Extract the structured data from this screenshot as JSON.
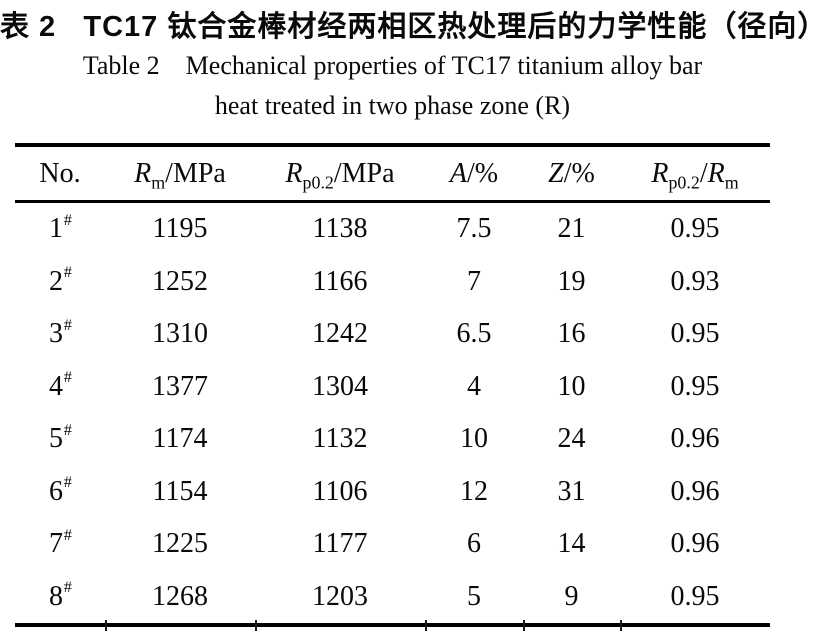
{
  "page": {
    "title_zh": "表 2   TC17 钛合金棒材经两相区热处理后的力学性能（径向）",
    "title_en_line1": "Table 2    Mechanical properties of TC17 titanium alloy bar",
    "title_en_line2": "heat treated in two phase zone (R)"
  },
  "table": {
    "row_marker": "#",
    "columns": [
      {
        "key": "no",
        "label_segments": [
          {
            "t": "No."
          }
        ]
      },
      {
        "key": "rm",
        "label_segments": [
          {
            "t": "R",
            "s": "i"
          },
          {
            "t": "m",
            "s": "sub"
          },
          {
            "t": "/MPa"
          }
        ]
      },
      {
        "key": "rp02",
        "label_segments": [
          {
            "t": "R",
            "s": "i"
          },
          {
            "t": "p0.2",
            "s": "sub"
          },
          {
            "t": "/MPa"
          }
        ]
      },
      {
        "key": "a",
        "label_segments": [
          {
            "t": "A",
            "s": "i"
          },
          {
            "t": "/%"
          }
        ]
      },
      {
        "key": "z",
        "label_segments": [
          {
            "t": "Z",
            "s": "i"
          },
          {
            "t": "/%"
          }
        ]
      },
      {
        "key": "ratio",
        "label_segments": [
          {
            "t": "R",
            "s": "i"
          },
          {
            "t": "p0.2",
            "s": "sub"
          },
          {
            "t": "/"
          },
          {
            "t": "R",
            "s": "i"
          },
          {
            "t": "m",
            "s": "sub"
          }
        ]
      }
    ],
    "rows": [
      {
        "no": "1",
        "rm": "1195",
        "rp02": "1138",
        "a": "7.5",
        "z": "21",
        "ratio": "0.95"
      },
      {
        "no": "2",
        "rm": "1252",
        "rp02": "1166",
        "a": "7",
        "z": "19",
        "ratio": "0.93"
      },
      {
        "no": "3",
        "rm": "1310",
        "rp02": "1242",
        "a": "6.5",
        "z": "16",
        "ratio": "0.95"
      },
      {
        "no": "4",
        "rm": "1377",
        "rp02": "1304",
        "a": "4",
        "z": "10",
        "ratio": "0.95"
      },
      {
        "no": "5",
        "rm": "1174",
        "rp02": "1132",
        "a": "10",
        "z": "24",
        "ratio": "0.96"
      },
      {
        "no": "6",
        "rm": "1154",
        "rp02": "1106",
        "a": "12",
        "z": "31",
        "ratio": "0.96"
      },
      {
        "no": "7",
        "rm": "1225",
        "rp02": "1177",
        "a": "6",
        "z": "14",
        "ratio": "0.96"
      },
      {
        "no": "8",
        "rm": "1268",
        "rp02": "1203",
        "a": "5",
        "z": "9",
        "ratio": "0.95"
      }
    ],
    "colors": {
      "text": "#0a0a0a",
      "rule": "#000000",
      "background": "#ffffff"
    }
  },
  "chart_data": {
    "type": "table",
    "title_zh": "表 2 TC17 钛合金棒材经两相区热处理后的力学性能（径向）",
    "title": "Table 2 Mechanical properties of TC17 titanium alloy bar heat treated in two phase zone (R)",
    "columns": [
      "No.",
      "Rm/MPa",
      "Rp0.2/MPa",
      "A/%",
      "Z/%",
      "Rp0.2/Rm"
    ],
    "rows": [
      [
        "1#",
        1195,
        1138,
        7.5,
        21,
        0.95
      ],
      [
        "2#",
        1252,
        1166,
        7,
        19,
        0.93
      ],
      [
        "3#",
        1310,
        1242,
        6.5,
        16,
        0.95
      ],
      [
        "4#",
        1377,
        1304,
        4,
        10,
        0.95
      ],
      [
        "5#",
        1174,
        1132,
        10,
        24,
        0.96
      ],
      [
        "6#",
        1154,
        1106,
        12,
        31,
        0.96
      ],
      [
        "7#",
        1225,
        1177,
        6,
        14,
        0.96
      ],
      [
        "8#",
        1268,
        1203,
        5,
        9,
        0.95
      ]
    ]
  }
}
